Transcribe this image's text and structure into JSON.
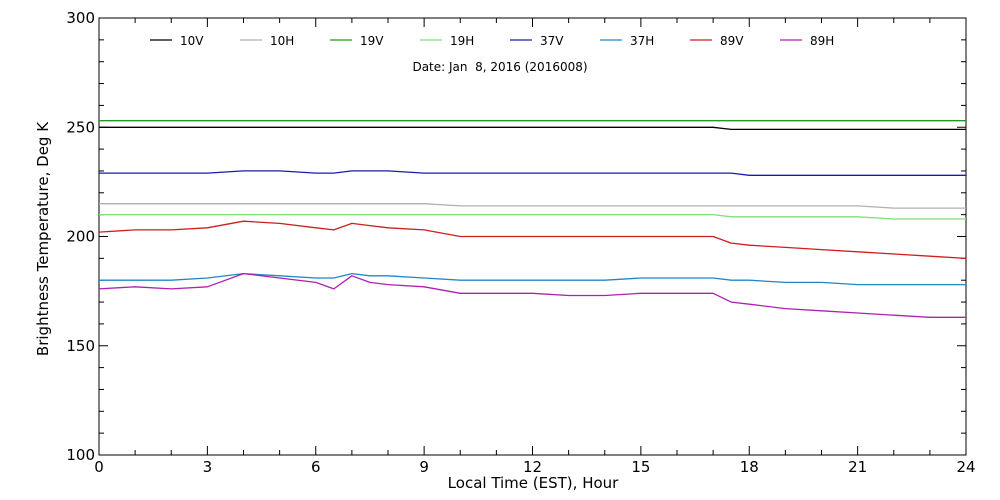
{
  "chart_data": {
    "type": "line",
    "xlabel": "Local Time (EST), Hour",
    "ylabel": "Brightness Temperature, Deg K",
    "annotation": "Date: Jan  8, 2016 (2016008)",
    "xlim": [
      0,
      24
    ],
    "ylim": [
      100,
      300
    ],
    "xticks": [
      0,
      3,
      6,
      9,
      12,
      15,
      18,
      21,
      24
    ],
    "yticks": [
      100,
      150,
      200,
      250,
      300
    ],
    "grid": false,
    "legend_position": "top",
    "x": [
      0,
      1,
      2,
      3,
      4,
      5,
      6,
      6.5,
      7,
      7.5,
      8,
      9,
      10,
      11,
      12,
      13,
      14,
      15,
      16,
      17,
      17.5,
      18,
      19,
      20,
      21,
      22,
      23,
      24
    ],
    "series": [
      {
        "name": "10V",
        "color": "#000000",
        "values": [
          250,
          250,
          250,
          250,
          250,
          250,
          250,
          250,
          250,
          250,
          250,
          250,
          250,
          250,
          250,
          250,
          250,
          250,
          250,
          250,
          249,
          249,
          249,
          249,
          249,
          249,
          249,
          249
        ]
      },
      {
        "name": "10H",
        "color": "#b0b0b0",
        "values": [
          215,
          215,
          215,
          215,
          215,
          215,
          215,
          215,
          215,
          215,
          215,
          215,
          214,
          214,
          214,
          214,
          214,
          214,
          214,
          214,
          214,
          214,
          214,
          214,
          214,
          213,
          213,
          213
        ]
      },
      {
        "name": "19V",
        "color": "#1f9a1f",
        "values": [
          253,
          253,
          253,
          253,
          253,
          253,
          253,
          253,
          253,
          253,
          253,
          253,
          253,
          253,
          253,
          253,
          253,
          253,
          253,
          253,
          253,
          253,
          253,
          253,
          253,
          253,
          253,
          253
        ]
      },
      {
        "name": "19H",
        "color": "#7ee07e",
        "values": [
          210,
          210,
          210,
          210,
          210,
          210,
          210,
          210,
          210,
          210,
          210,
          210,
          210,
          210,
          210,
          210,
          210,
          210,
          210,
          210,
          209,
          209,
          209,
          209,
          209,
          208,
          208,
          208
        ]
      },
      {
        "name": "37V",
        "color": "#1c1ca8",
        "values": [
          229,
          229,
          229,
          229,
          230,
          230,
          229,
          229,
          230,
          230,
          230,
          229,
          229,
          229,
          229,
          229,
          229,
          229,
          229,
          229,
          229,
          228,
          228,
          228,
          228,
          228,
          228,
          228
        ]
      },
      {
        "name": "37H",
        "color": "#1e88c8",
        "values": [
          180,
          180,
          180,
          181,
          183,
          182,
          181,
          181,
          183,
          182,
          182,
          181,
          180,
          180,
          180,
          180,
          180,
          181,
          181,
          181,
          180,
          180,
          179,
          179,
          178,
          178,
          178,
          178
        ]
      },
      {
        "name": "89V",
        "color": "#cc1f1f",
        "values": [
          202,
          203,
          203,
          204,
          207,
          206,
          204,
          203,
          206,
          205,
          204,
          203,
          200,
          200,
          200,
          200,
          200,
          200,
          200,
          200,
          197,
          196,
          195,
          194,
          193,
          192,
          191,
          190
        ]
      },
      {
        "name": "89H",
        "color": "#b01fb0",
        "values": [
          176,
          177,
          176,
          177,
          183,
          181,
          179,
          176,
          182,
          179,
          178,
          177,
          174,
          174,
          174,
          173,
          173,
          174,
          174,
          174,
          170,
          169,
          167,
          166,
          165,
          164,
          163,
          163
        ]
      }
    ]
  }
}
